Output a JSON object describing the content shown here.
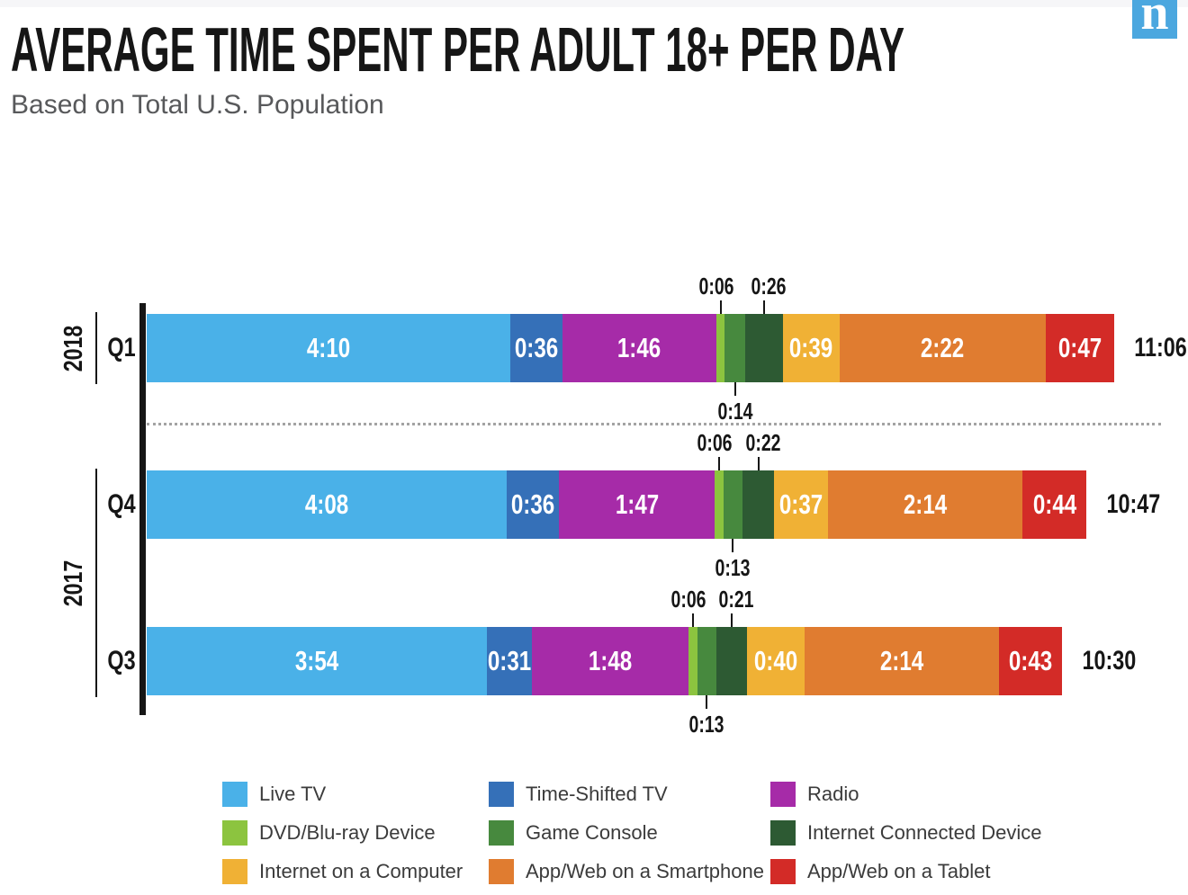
{
  "header": {
    "title": "AVERAGE TIME SPENT PER ADULT 18+ PER DAY",
    "subtitle": "Based on Total U.S. Population",
    "logo_letter": "n",
    "logo_color": "#4BA7DF"
  },
  "chart_data": {
    "type": "bar",
    "variant": "horizontal-stacked",
    "unit": "hours:minutes per day",
    "title": "AVERAGE TIME SPENT PER ADULT 18+ PER DAY",
    "subtitle": "Based on Total U.S. Population",
    "legend_position": "bottom",
    "categories": [
      "Live TV",
      "Time-Shifted TV",
      "Radio",
      "DVD/Blu-ray Device",
      "Game Console",
      "Internet Connected Device",
      "Internet on a Computer",
      "App/Web on a Smartphone",
      "App/Web on a Tablet"
    ],
    "colors": [
      "#4AB1E8",
      "#3570B8",
      "#A62BA8",
      "#8CC43F",
      "#47893E",
      "#2D5A33",
      "#F0B135",
      "#E07C30",
      "#D32B27"
    ],
    "rows": [
      {
        "year": "2018",
        "quarter": "Q1",
        "labels": [
          "4:10",
          "0:36",
          "1:46",
          "0:06",
          "0:14",
          "0:26",
          "0:39",
          "2:22",
          "0:47"
        ],
        "minutes": [
          250,
          36,
          106,
          6,
          14,
          26,
          39,
          142,
          47
        ],
        "total": "11:06",
        "total_minutes": 666
      },
      {
        "year": "2017",
        "quarter": "Q4",
        "labels": [
          "4:08",
          "0:36",
          "1:47",
          "0:06",
          "0:13",
          "0:22",
          "0:37",
          "2:14",
          "0:44"
        ],
        "minutes": [
          248,
          36,
          107,
          6,
          13,
          22,
          37,
          134,
          44
        ],
        "total": "10:47",
        "total_minutes": 647
      },
      {
        "year": "2017",
        "quarter": "Q3",
        "labels": [
          "3:54",
          "0:31",
          "1:48",
          "0:06",
          "0:13",
          "0:21",
          "0:40",
          "2:14",
          "0:43"
        ],
        "minutes": [
          234,
          31,
          108,
          6,
          13,
          21,
          40,
          134,
          43
        ],
        "total": "10:30",
        "total_minutes": 630
      }
    ],
    "year_groups": [
      {
        "label": "2018",
        "row_indexes": [
          0
        ]
      },
      {
        "label": "2017",
        "row_indexes": [
          1,
          2
        ]
      }
    ],
    "callouts": {
      "above_segment_indexes": [
        3,
        5
      ],
      "below_segment_indexes": [
        4
      ]
    }
  }
}
